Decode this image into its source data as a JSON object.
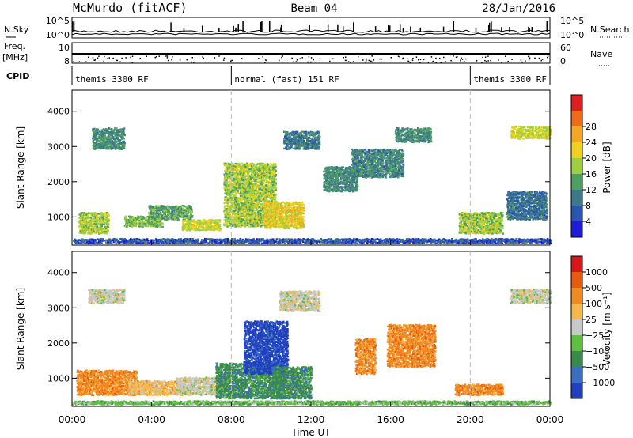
{
  "chart_data": [
    {
      "type": "line",
      "panel": "header",
      "title": "McMurdo (fitACF)",
      "beam": "Beam 04",
      "date": "28/Jan/2016",
      "left_labels": {
        "nsky": "N.Sky",
        "freq_top": "Freq.",
        "freq_unit": "[MHz]",
        "cpid": "CPID"
      },
      "right_labels": {
        "nsearch": "N.Search",
        "nave": "Nave"
      },
      "ticks": {
        "noise_left_top": "10^5",
        "noise_left_bottom": "10^0",
        "noise_right_top": "10^5",
        "noise_right_bottom": "10^0",
        "freq_top": "10",
        "freq_bottom": "8",
        "nave_top": "60",
        "nave_bottom": "0"
      },
      "cpid_segments": [
        {
          "label": "themis 3300 RF",
          "start_hour": 0,
          "end_hour": 8
        },
        {
          "label": "normal (fast) 151 RF",
          "start_hour": 8,
          "end_hour": 20
        },
        {
          "label": "themis 3300 RF",
          "start_hour": 20,
          "end_hour": 24
        }
      ]
    },
    {
      "type": "heatmap",
      "panel": "power",
      "ylabel": "Slant Range [km]",
      "ylim": [
        200,
        4600
      ],
      "yticks": [
        "1000",
        "2000",
        "3000",
        "4000"
      ],
      "xlim": [
        0,
        24
      ],
      "colorbar": {
        "label": "Power [dB]",
        "ticks": [
          "4",
          "8",
          "12",
          "16",
          "20",
          "24",
          "28"
        ],
        "colors": [
          "#1b1bd8",
          "#2a55b0",
          "#3f7a8a",
          "#4f9f63",
          "#9fcf3c",
          "#f0d020",
          "#f5a623",
          "#ef6b1a",
          "#e02020"
        ]
      },
      "bands": [
        {
          "h0": 0.0,
          "h1": 24.0,
          "r0": 230,
          "r1": 360,
          "v": 6
        },
        {
          "h0": 0.3,
          "h1": 1.8,
          "r0": 500,
          "r1": 1100,
          "v": 18
        },
        {
          "h0": 1.0,
          "h1": 2.6,
          "r0": 2900,
          "r1": 3500,
          "v": 12
        },
        {
          "h0": 2.6,
          "h1": 4.5,
          "r0": 700,
          "r1": 1000,
          "v": 16
        },
        {
          "h0": 3.8,
          "h1": 6.0,
          "r0": 900,
          "r1": 1300,
          "v": 14
        },
        {
          "h0": 5.5,
          "h1": 7.4,
          "r0": 600,
          "r1": 900,
          "v": 20
        },
        {
          "h0": 7.6,
          "h1": 10.2,
          "r0": 700,
          "r1": 2500,
          "v": 18
        },
        {
          "h0": 9.6,
          "h1": 11.6,
          "r0": 650,
          "r1": 1400,
          "v": 22
        },
        {
          "h0": 10.6,
          "h1": 12.4,
          "r0": 2900,
          "r1": 3400,
          "v": 10
        },
        {
          "h0": 12.6,
          "h1": 14.3,
          "r0": 1700,
          "r1": 2400,
          "v": 12
        },
        {
          "h0": 14.0,
          "h1": 16.6,
          "r0": 2100,
          "r1": 2900,
          "v": 11
        },
        {
          "h0": 16.2,
          "h1": 18.0,
          "r0": 3100,
          "r1": 3500,
          "v": 12
        },
        {
          "h0": 19.4,
          "h1": 21.6,
          "r0": 500,
          "r1": 1100,
          "v": 18
        },
        {
          "h0": 22.0,
          "h1": 24.0,
          "r0": 3200,
          "r1": 3550,
          "v": 20
        },
        {
          "h0": 21.8,
          "h1": 23.8,
          "r0": 900,
          "r1": 1700,
          "v": 9
        }
      ]
    },
    {
      "type": "heatmap",
      "panel": "velocity",
      "ylabel": "Slant Range [km]",
      "ylim": [
        200,
        4600
      ],
      "yticks": [
        "1000",
        "2000",
        "3000",
        "4000"
      ],
      "xlabel": "Time UT",
      "xlim": [
        0,
        24
      ],
      "xticks": [
        "00:00",
        "04:00",
        "08:00",
        "12:00",
        "16:00",
        "20:00",
        "00:00"
      ],
      "colorbar": {
        "label": "Velocity [m s⁻¹]",
        "ticks": [
          "1000",
          "500",
          "100",
          "25",
          "−25",
          "−100",
          "−500",
          "−1000"
        ],
        "colors": [
          "#2040c0",
          "#3a6fc4",
          "#3a8a4a",
          "#5fbf3f",
          "#c8c8c8",
          "#f5b84a",
          "#f08a20",
          "#e85a10",
          "#d81818"
        ]
      },
      "bands": [
        {
          "h0": 0.0,
          "h1": 24.0,
          "r0": 230,
          "r1": 330,
          "v": 3
        },
        {
          "h0": 0.2,
          "h1": 3.2,
          "r0": 500,
          "r1": 1200,
          "v": 6
        },
        {
          "h0": 2.8,
          "h1": 5.6,
          "r0": 500,
          "r1": 900,
          "v": 5
        },
        {
          "h0": 5.2,
          "h1": 7.6,
          "r0": 500,
          "r1": 1000,
          "v": 4
        },
        {
          "h0": 7.2,
          "h1": 10.6,
          "r0": 400,
          "r1": 1400,
          "v": 2
        },
        {
          "h0": 8.6,
          "h1": 10.8,
          "r0": 1100,
          "r1": 2600,
          "v": 0
        },
        {
          "h0": 10.0,
          "h1": 12.0,
          "r0": 400,
          "r1": 1300,
          "v": 2
        },
        {
          "h0": 10.4,
          "h1": 12.4,
          "r0": 2900,
          "r1": 3450,
          "v": 4
        },
        {
          "h0": 14.2,
          "h1": 15.2,
          "r0": 1100,
          "r1": 2100,
          "v": 6
        },
        {
          "h0": 15.8,
          "h1": 18.2,
          "r0": 1300,
          "r1": 2500,
          "v": 6
        },
        {
          "h0": 19.2,
          "h1": 21.6,
          "r0": 500,
          "r1": 800,
          "v": 6
        },
        {
          "h0": 0.8,
          "h1": 2.6,
          "r0": 3100,
          "r1": 3500,
          "v": 4
        },
        {
          "h0": 22.0,
          "h1": 24.0,
          "r0": 3100,
          "r1": 3500,
          "v": 4
        }
      ]
    }
  ]
}
